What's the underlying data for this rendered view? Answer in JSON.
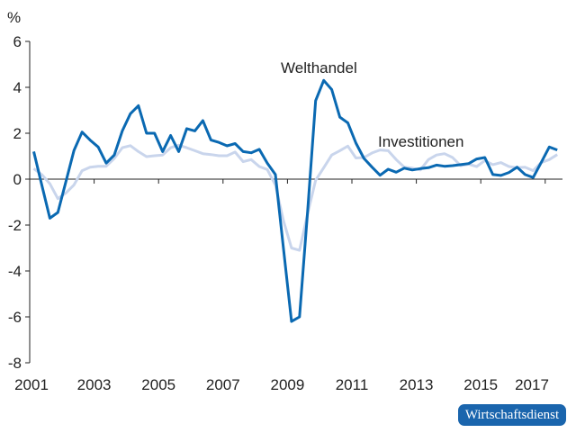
{
  "chart_data": {
    "type": "line",
    "title": "",
    "xlabel": "",
    "ylabel": "%",
    "ylim": [
      -8,
      6
    ],
    "yticks": [
      6,
      4,
      2,
      0,
      -2,
      -4,
      -6,
      -8
    ],
    "xticks": [
      "2001",
      "2003",
      "2005",
      "2007",
      "2009",
      "2011",
      "2013",
      "2015",
      "2017"
    ],
    "grid": false,
    "legend": "inline labels",
    "x": [
      "2001Q1",
      "2001Q2",
      "2001Q3",
      "2001Q4",
      "2002Q1",
      "2002Q2",
      "2002Q3",
      "2002Q4",
      "2003Q1",
      "2003Q2",
      "2003Q3",
      "2003Q4",
      "2004Q1",
      "2004Q2",
      "2004Q3",
      "2004Q4",
      "2005Q1",
      "2005Q2",
      "2005Q3",
      "2005Q4",
      "2006Q1",
      "2006Q2",
      "2006Q3",
      "2006Q4",
      "2007Q1",
      "2007Q2",
      "2007Q3",
      "2007Q4",
      "2008Q1",
      "2008Q2",
      "2008Q3",
      "2008Q4",
      "2009Q1",
      "2009Q2",
      "2009Q3",
      "2009Q4",
      "2010Q1",
      "2010Q2",
      "2010Q3",
      "2010Q4",
      "2011Q1",
      "2011Q2",
      "2011Q3",
      "2011Q4",
      "2012Q1",
      "2012Q2",
      "2012Q3",
      "2012Q4",
      "2013Q1",
      "2013Q2",
      "2013Q3",
      "2013Q4",
      "2014Q1",
      "2014Q2",
      "2014Q3",
      "2014Q4",
      "2015Q1",
      "2015Q2",
      "2015Q3",
      "2015Q4",
      "2016Q1",
      "2016Q2",
      "2016Q3",
      "2016Q4",
      "2017Q1",
      "2017Q2"
    ],
    "series": [
      {
        "name": "Investitionen",
        "color": "#c9d5ec",
        "values": [
          0.46,
          0.2,
          -0.2,
          -0.85,
          -0.6,
          -0.25,
          0.37,
          0.52,
          0.56,
          0.56,
          0.9,
          1.37,
          1.46,
          1.2,
          0.98,
          1.02,
          1.05,
          1.37,
          1.48,
          1.37,
          1.24,
          1.11,
          1.07,
          1.02,
          1.02,
          1.18,
          0.76,
          0.85,
          0.55,
          0.42,
          -0.26,
          -1.8,
          -3.0,
          -3.1,
          -1.5,
          -0.05,
          0.5,
          1.05,
          1.24,
          1.44,
          0.92,
          0.94,
          1.14,
          1.27,
          1.24,
          0.85,
          0.52,
          0.48,
          0.4,
          0.85,
          1.05,
          1.11,
          0.94,
          0.59,
          0.65,
          0.55,
          0.81,
          0.63,
          0.72,
          0.55,
          0.5,
          0.52,
          0.37,
          0.72,
          0.85,
          1.07
        ]
      },
      {
        "name": "Welthandel",
        "color": "#0a69b2",
        "values": [
          1.2,
          -0.25,
          -1.7,
          -1.45,
          -0.1,
          1.25,
          2.05,
          1.7,
          1.4,
          0.7,
          1.05,
          2.1,
          2.85,
          3.2,
          2.0,
          2.0,
          1.2,
          1.9,
          1.2,
          2.2,
          2.1,
          2.55,
          1.7,
          1.6,
          1.45,
          1.55,
          1.2,
          1.15,
          1.3,
          0.7,
          0.2,
          -3.0,
          -6.2,
          -6.0,
          -1.4,
          3.42,
          4.3,
          3.9,
          2.7,
          2.45,
          1.57,
          0.9,
          0.52,
          0.17,
          0.43,
          0.3,
          0.48,
          0.4,
          0.46,
          0.5,
          0.61,
          0.56,
          0.59,
          0.63,
          0.68,
          0.88,
          0.94,
          0.2,
          0.16,
          0.29,
          0.52,
          0.2,
          0.07,
          0.72,
          1.4,
          1.27
        ]
      }
    ]
  },
  "branding": {
    "badge": "Wirtschaftsdienst",
    "color": "#1a65ad"
  }
}
